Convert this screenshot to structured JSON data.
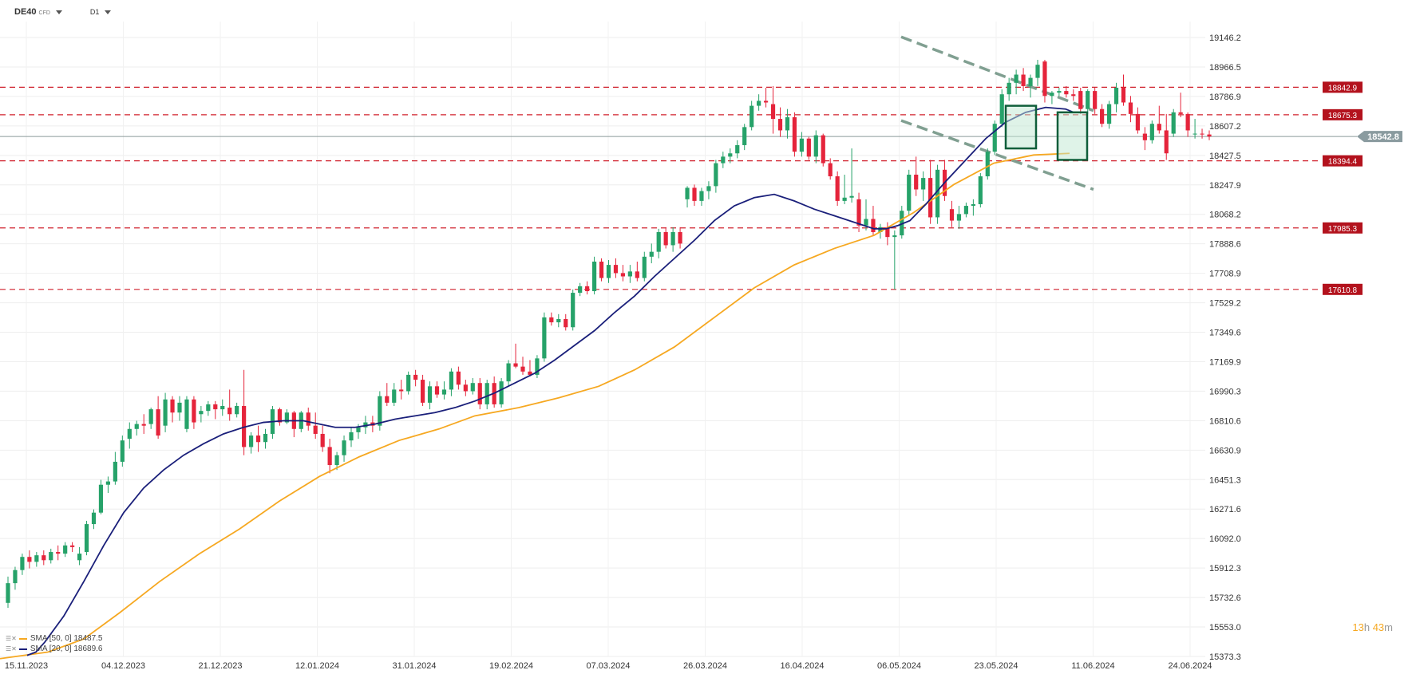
{
  "toolbar": {
    "symbol": "DE40",
    "instrument_type": "CFD",
    "timeframe": "D1"
  },
  "indicators": [
    {
      "label": "SMA [50, 0] 18487.5",
      "color": "#f6a821"
    },
    {
      "label": "SMA [20, 0] 18689.6",
      "color": "#1a1f7a"
    }
  ],
  "timer": {
    "hours": "13",
    "h_unit": "h",
    "minutes": "43",
    "m_unit": "m"
  },
  "colors": {
    "up": "#26a269",
    "down": "#e5243b",
    "level": "#d0202c",
    "sma20": "#1a1f7a",
    "sma50": "#f6a821",
    "channel": "#6b8f7e",
    "box": "#0f5e3a"
  },
  "chart_data": {
    "type": "candlestick",
    "instrument": "DE40",
    "timeframe": "D1",
    "y_ticks": [
      "19146.2",
      "18966.5",
      "18786.9",
      "18607.2",
      "18427.5",
      "18247.9",
      "18068.2",
      "17888.6",
      "17708.9",
      "17529.2",
      "17349.6",
      "17169.9",
      "16990.3",
      "16810.6",
      "16630.9",
      "16451.3",
      "16271.6",
      "16092.0",
      "15912.3",
      "15732.6",
      "15553.0",
      "15373.3"
    ],
    "ylim": [
      15373.3,
      19146.2
    ],
    "x_ticks": [
      "15.11.2023",
      "04.12.2023",
      "21.12.2023",
      "12.01.2024",
      "31.01.2024",
      "19.02.2024",
      "07.03.2024",
      "26.03.2024",
      "16.04.2024",
      "06.05.2024",
      "23.05.2024",
      "11.06.2024",
      "24.06.2024"
    ],
    "current_price": "18542.8",
    "levels": [
      "18842.9",
      "18675.3",
      "18394.4",
      "17985.3",
      "17610.8"
    ],
    "candles": [
      [
        15700,
        15860,
        15670,
        15820
      ],
      [
        15820,
        15920,
        15780,
        15900
      ],
      [
        15900,
        16000,
        15870,
        15980
      ],
      [
        15980,
        16020,
        15910,
        15950
      ],
      [
        15950,
        16010,
        15920,
        15990
      ],
      [
        15990,
        16020,
        15930,
        15960
      ],
      [
        15960,
        16030,
        15940,
        16010
      ],
      [
        16010,
        16050,
        15960,
        16000
      ],
      [
        16000,
        16070,
        15980,
        16050
      ],
      [
        16050,
        16070,
        16010,
        16040
      ],
      [
        15960,
        16040,
        15930,
        16000
      ],
      [
        16010,
        16200,
        15990,
        16180
      ],
      [
        16180,
        16270,
        16150,
        16250
      ],
      [
        16250,
        16450,
        16240,
        16420
      ],
      [
        16420,
        16470,
        16370,
        16440
      ],
      [
        16440,
        16620,
        16420,
        16560
      ],
      [
        16560,
        16720,
        16530,
        16690
      ],
      [
        16700,
        16800,
        16640,
        16760
      ],
      [
        16760,
        16810,
        16720,
        16790
      ],
      [
        16790,
        16850,
        16730,
        16780
      ],
      [
        16790,
        16890,
        16760,
        16880
      ],
      [
        16880,
        16960,
        16700,
        16720
      ],
      [
        16780,
        16980,
        16740,
        16940
      ],
      [
        16940,
        16960,
        16800,
        16860
      ],
      [
        16860,
        16960,
        16810,
        16920
      ],
      [
        16760,
        16960,
        16740,
        16940
      ],
      [
        16940,
        16960,
        16760,
        16800
      ],
      [
        16850,
        16900,
        16800,
        16870
      ],
      [
        16870,
        16930,
        16840,
        16910
      ],
      [
        16910,
        16930,
        16820,
        16880
      ],
      [
        16880,
        16940,
        16840,
        16900
      ],
      [
        16890,
        17000,
        16810,
        16850
      ],
      [
        16850,
        16920,
        16830,
        16900
      ],
      [
        16900,
        17120,
        16600,
        16650
      ],
      [
        16650,
        16740,
        16610,
        16720
      ],
      [
        16720,
        16780,
        16620,
        16680
      ],
      [
        16680,
        16760,
        16640,
        16730
      ],
      [
        16730,
        16900,
        16700,
        16880
      ],
      [
        16880,
        16890,
        16780,
        16800
      ],
      [
        16800,
        16880,
        16790,
        16860
      ],
      [
        16860,
        16870,
        16710,
        16760
      ],
      [
        16760,
        16870,
        16740,
        16860
      ],
      [
        16860,
        16890,
        16750,
        16780
      ],
      [
        16780,
        16860,
        16700,
        16730
      ],
      [
        16730,
        16780,
        16620,
        16650
      ],
      [
        16650,
        16700,
        16490,
        16540
      ],
      [
        16540,
        16620,
        16510,
        16600
      ],
      [
        16600,
        16720,
        16560,
        16690
      ],
      [
        16690,
        16770,
        16650,
        16740
      ],
      [
        16740,
        16790,
        16700,
        16770
      ],
      [
        16770,
        16840,
        16730,
        16800
      ],
      [
        16800,
        16840,
        16740,
        16780
      ],
      [
        16780,
        16990,
        16750,
        16960
      ],
      [
        16960,
        17040,
        16900,
        16920
      ],
      [
        16920,
        17040,
        16900,
        17000
      ],
      [
        17000,
        17060,
        16940,
        16990
      ],
      [
        16990,
        17110,
        16970,
        17090
      ],
      [
        17090,
        17120,
        17020,
        17060
      ],
      [
        17060,
        17090,
        16900,
        16920
      ],
      [
        16920,
        17050,
        16880,
        17020
      ],
      [
        17020,
        17050,
        16950,
        16970
      ],
      [
        16970,
        17050,
        16940,
        17000
      ],
      [
        17000,
        17130,
        16960,
        17110
      ],
      [
        17110,
        17140,
        17000,
        17030
      ],
      [
        17030,
        17060,
        16960,
        16990
      ],
      [
        16990,
        17070,
        16970,
        17040
      ],
      [
        17040,
        17070,
        16880,
        16910
      ],
      [
        16910,
        17060,
        16880,
        17040
      ],
      [
        17040,
        17080,
        16890,
        16910
      ],
      [
        16910,
        17070,
        16890,
        17050
      ],
      [
        17050,
        17180,
        17020,
        17160
      ],
      [
        17160,
        17280,
        17130,
        17140
      ],
      [
        17140,
        17200,
        17090,
        17110
      ],
      [
        17110,
        17180,
        17080,
        17090
      ],
      [
        17090,
        17210,
        17070,
        17190
      ],
      [
        17190,
        17470,
        17170,
        17440
      ],
      [
        17440,
        17470,
        17390,
        17410
      ],
      [
        17410,
        17460,
        17380,
        17430
      ],
      [
        17430,
        17460,
        17360,
        17380
      ],
      [
        17380,
        17610,
        17360,
        17590
      ],
      [
        17590,
        17650,
        17570,
        17630
      ],
      [
        17630,
        17660,
        17580,
        17600
      ],
      [
        17600,
        17810,
        17580,
        17780
      ],
      [
        17780,
        17800,
        17660,
        17680
      ],
      [
        17680,
        17790,
        17650,
        17760
      ],
      [
        17760,
        17800,
        17680,
        17710
      ],
      [
        17710,
        17760,
        17660,
        17690
      ],
      [
        17690,
        17760,
        17650,
        17720
      ],
      [
        17720,
        17780,
        17660,
        17680
      ],
      [
        17680,
        17840,
        17660,
        17810
      ],
      [
        17810,
        17890,
        17770,
        17840
      ],
      [
        17840,
        17980,
        17800,
        17960
      ],
      [
        17960,
        17990,
        17860,
        17880
      ],
      [
        17880,
        17990,
        17840,
        17960
      ],
      [
        17960,
        17990,
        17860,
        17890
      ],
      [
        18160,
        18240,
        18110,
        18230
      ],
      [
        18230,
        18250,
        18120,
        18150
      ],
      [
        18150,
        18230,
        18120,
        18210
      ],
      [
        18210,
        18270,
        18160,
        18240
      ],
      [
        18240,
        18400,
        18200,
        18380
      ],
      [
        18380,
        18450,
        18350,
        18420
      ],
      [
        18420,
        18470,
        18380,
        18440
      ],
      [
        18440,
        18520,
        18410,
        18490
      ],
      [
        18490,
        18620,
        18460,
        18600
      ],
      [
        18600,
        18760,
        18580,
        18730
      ],
      [
        18730,
        18800,
        18700,
        18760
      ],
      [
        18760,
        18840,
        18720,
        18750
      ],
      [
        18740,
        18850,
        18560,
        18650
      ],
      [
        18650,
        18720,
        18540,
        18580
      ],
      [
        18580,
        18710,
        18530,
        18660
      ],
      [
        18660,
        18690,
        18420,
        18450
      ],
      [
        18450,
        18570,
        18420,
        18530
      ],
      [
        18530,
        18540,
        18400,
        18420
      ],
      [
        18420,
        18580,
        18380,
        18550
      ],
      [
        18550,
        18560,
        18360,
        18380
      ],
      [
        18380,
        18410,
        18280,
        18300
      ],
      [
        18300,
        18330,
        18120,
        18150
      ],
      [
        18150,
        18310,
        18130,
        18170
      ],
      [
        18170,
        18470,
        18140,
        18180
      ],
      [
        18160,
        18200,
        17960,
        18000
      ],
      [
        18000,
        18160,
        17970,
        18040
      ],
      [
        18040,
        18120,
        17940,
        17960
      ],
      [
        17960,
        18010,
        17920,
        17990
      ],
      [
        17990,
        18020,
        17880,
        17930
      ],
      [
        17930,
        17970,
        17610,
        17940
      ],
      [
        17940,
        18120,
        17920,
        18090
      ],
      [
        18090,
        18340,
        18060,
        18310
      ],
      [
        18310,
        18420,
        18180,
        18220
      ],
      [
        18220,
        18330,
        18150,
        18290
      ],
      [
        18290,
        18400,
        18010,
        18050
      ],
      [
        18050,
        18370,
        18010,
        18340
      ],
      [
        18340,
        18400,
        18150,
        18180
      ],
      [
        18100,
        18150,
        17990,
        18030
      ],
      [
        18030,
        18120,
        17980,
        18070
      ],
      [
        18070,
        18140,
        18050,
        18120
      ],
      [
        18120,
        18160,
        18060,
        18130
      ],
      [
        18130,
        18320,
        18110,
        18300
      ],
      [
        18300,
        18470,
        18280,
        18450
      ],
      [
        18450,
        18640,
        18430,
        18620
      ],
      [
        18620,
        18830,
        18600,
        18800
      ],
      [
        18800,
        18900,
        18760,
        18870
      ],
      [
        18870,
        18950,
        18800,
        18920
      ],
      [
        18920,
        18960,
        18820,
        18850
      ],
      [
        18850,
        18920,
        18780,
        18900
      ],
      [
        18900,
        19010,
        18850,
        18980
      ],
      [
        19000,
        19010,
        18750,
        18790
      ],
      [
        18790,
        18820,
        18740,
        18810
      ],
      [
        18810,
        18840,
        18790,
        18820
      ],
      [
        18820,
        18850,
        18780,
        18800
      ],
      [
        18800,
        18830,
        18760,
        18790
      ],
      [
        18820,
        18840,
        18680,
        18710
      ],
      [
        18710,
        18830,
        18680,
        18820
      ],
      [
        18820,
        18840,
        18680,
        18710
      ],
      [
        18710,
        18740,
        18600,
        18620
      ],
      [
        18620,
        18760,
        18590,
        18740
      ],
      [
        18740,
        18870,
        18690,
        18840
      ],
      [
        18840,
        18920,
        18730,
        18750
      ],
      [
        18750,
        18790,
        18630,
        18680
      ],
      [
        18680,
        18720,
        18560,
        18580
      ],
      [
        18560,
        18600,
        18460,
        18520
      ],
      [
        18520,
        18640,
        18500,
        18620
      ],
      [
        18620,
        18730,
        18560,
        18580
      ],
      [
        18580,
        18680,
        18400,
        18440
      ],
      [
        18560,
        18710,
        18540,
        18690
      ],
      [
        18690,
        18810,
        18660,
        18680
      ],
      [
        18680,
        18690,
        18540,
        18580
      ],
      [
        18560,
        18650,
        18530,
        18560
      ],
      [
        18560,
        18590,
        18530,
        18555
      ],
      [
        18555,
        18580,
        18520,
        18542.8
      ]
    ],
    "sma20": [
      [
        34,
        15380
      ],
      [
        45,
        15400
      ],
      [
        56,
        15460
      ],
      [
        80,
        15620
      ],
      [
        105,
        15830
      ],
      [
        130,
        16050
      ],
      [
        155,
        16250
      ],
      [
        180,
        16400
      ],
      [
        205,
        16510
      ],
      [
        230,
        16600
      ],
      [
        255,
        16670
      ],
      [
        280,
        16730
      ],
      [
        305,
        16770
      ],
      [
        330,
        16800
      ],
      [
        355,
        16810
      ],
      [
        380,
        16810
      ],
      [
        400,
        16790
      ],
      [
        420,
        16770
      ],
      [
        445,
        16770
      ],
      [
        470,
        16790
      ],
      [
        495,
        16820
      ],
      [
        520,
        16840
      ],
      [
        545,
        16860
      ],
      [
        570,
        16890
      ],
      [
        595,
        16930
      ],
      [
        620,
        16980
      ],
      [
        645,
        17040
      ],
      [
        670,
        17100
      ],
      [
        695,
        17180
      ],
      [
        720,
        17270
      ],
      [
        745,
        17360
      ],
      [
        770,
        17470
      ],
      [
        795,
        17570
      ],
      [
        820,
        17690
      ],
      [
        845,
        17800
      ],
      [
        870,
        17910
      ],
      [
        895,
        18030
      ],
      [
        920,
        18120
      ],
      [
        945,
        18170
      ],
      [
        970,
        18190
      ],
      [
        995,
        18150
      ],
      [
        1020,
        18100
      ],
      [
        1045,
        18060
      ],
      [
        1070,
        18020
      ],
      [
        1095,
        17980
      ],
      [
        1110,
        17980
      ],
      [
        1125,
        18000
      ],
      [
        1140,
        18030
      ],
      [
        1160,
        18130
      ],
      [
        1185,
        18270
      ],
      [
        1210,
        18400
      ],
      [
        1235,
        18530
      ],
      [
        1260,
        18630
      ],
      [
        1285,
        18690
      ],
      [
        1310,
        18720
      ],
      [
        1335,
        18710
      ],
      [
        1345,
        18690
      ]
    ],
    "sma50": [
      [
        0,
        15360
      ],
      [
        60,
        15400
      ],
      [
        105,
        15480
      ],
      [
        150,
        15640
      ],
      [
        200,
        15830
      ],
      [
        250,
        16000
      ],
      [
        300,
        16150
      ],
      [
        350,
        16320
      ],
      [
        400,
        16470
      ],
      [
        450,
        16590
      ],
      [
        500,
        16690
      ],
      [
        550,
        16760
      ],
      [
        595,
        16840
      ],
      [
        650,
        16890
      ],
      [
        700,
        16950
      ],
      [
        750,
        17020
      ],
      [
        795,
        17120
      ],
      [
        845,
        17260
      ],
      [
        895,
        17440
      ],
      [
        945,
        17620
      ],
      [
        995,
        17760
      ],
      [
        1045,
        17860
      ],
      [
        1095,
        17940
      ],
      [
        1145,
        18080
      ],
      [
        1195,
        18250
      ],
      [
        1245,
        18380
      ],
      [
        1295,
        18430
      ],
      [
        1340,
        18440
      ]
    ]
  }
}
